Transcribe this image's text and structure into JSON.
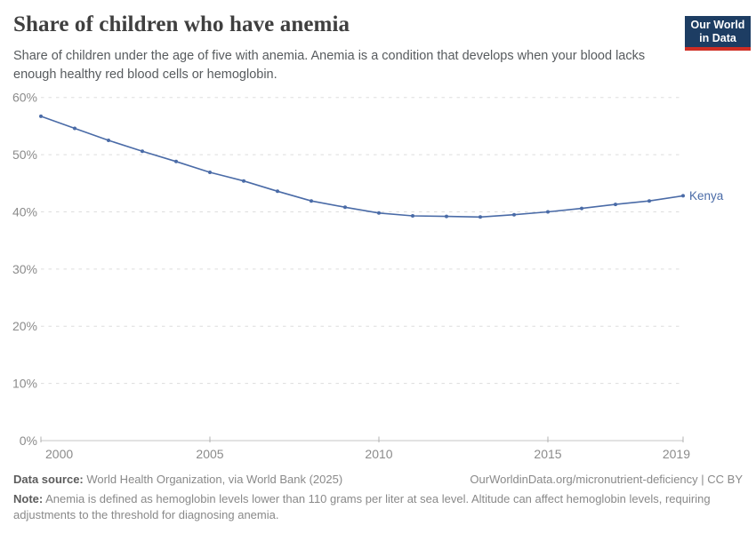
{
  "header": {
    "title": "Share of children who have anemia",
    "subtitle": "Share of children under the age of five with anemia. Anemia is a condition that develops when your blood lacks enough healthy red blood cells or hemoglobin.",
    "logo": {
      "line1": "Our World",
      "line2": "in Data"
    }
  },
  "chart_data": {
    "type": "line",
    "title": "Share of children who have anemia",
    "x": [
      2000,
      2001,
      2002,
      2003,
      2004,
      2005,
      2006,
      2007,
      2008,
      2009,
      2010,
      2011,
      2012,
      2013,
      2014,
      2015,
      2016,
      2017,
      2018,
      2019
    ],
    "series": [
      {
        "name": "Kenya",
        "color": "#4a6ba7",
        "values": [
          56.7,
          54.6,
          52.5,
          50.6,
          48.8,
          46.9,
          45.4,
          43.6,
          41.9,
          40.8,
          39.8,
          39.3,
          39.2,
          39.1,
          39.5,
          40.0,
          40.6,
          41.3,
          41.9,
          42.8
        ]
      }
    ],
    "end_label": "Kenya",
    "xlim": [
      2000,
      2019
    ],
    "ylim": [
      0,
      60
    ],
    "xticks": [
      {
        "value": 2000,
        "label": "2000"
      },
      {
        "value": 2005,
        "label": "2005"
      },
      {
        "value": 2010,
        "label": "2010"
      },
      {
        "value": 2015,
        "label": "2015"
      },
      {
        "value": 2019,
        "label": "2019"
      }
    ],
    "yticks": [
      {
        "value": 0,
        "label": "0%"
      },
      {
        "value": 10,
        "label": "10%"
      },
      {
        "value": 20,
        "label": "20%"
      },
      {
        "value": 30,
        "label": "30%"
      },
      {
        "value": 40,
        "label": "40%"
      },
      {
        "value": 50,
        "label": "50%"
      },
      {
        "value": 60,
        "label": "60%"
      }
    ],
    "grid": "horizontal-dashed",
    "legend_position": "end-of-line"
  },
  "footer": {
    "source_label": "Data source:",
    "source_text": " World Health Organization, via World Bank (2025)",
    "rights": "OurWorldinData.org/micronutrient-deficiency | CC BY",
    "note_label": "Note:",
    "note_text": " Anemia is defined as hemoglobin levels lower than 110 grams per liter at sea level. Altitude can affect hemoglobin levels, requiring adjustments to the threshold for diagnosing anemia."
  },
  "colors": {
    "line": "#4a6ba7",
    "logo_bg": "#1d3d63",
    "logo_accent": "#cf2d23",
    "grid": "#dddddd",
    "axis": "#c6c6c6",
    "tick": "#b0b0b0",
    "tick_label": "#8b8b8b"
  }
}
